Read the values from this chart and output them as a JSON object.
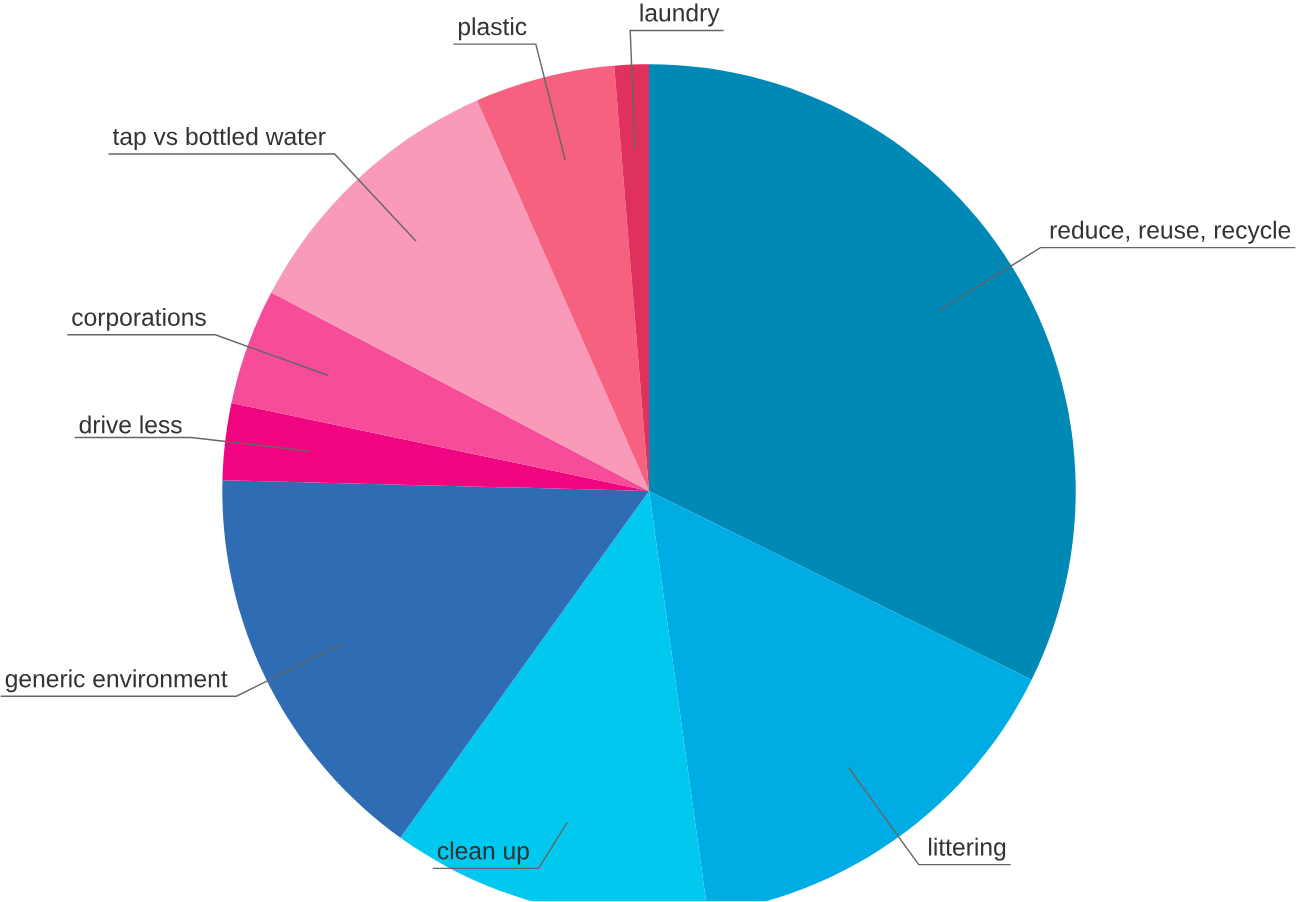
{
  "chart_data": {
    "type": "pie",
    "categories": [
      "reduce, reuse, recycle",
      "littering",
      "clean up",
      "generic environment",
      "drive less",
      "corporations",
      "tap vs bottled water",
      "plastic",
      "laundry"
    ],
    "values": [
      32.3,
      15.5,
      12.1,
      15.5,
      2.9,
      4.4,
      10.7,
      5.3,
      1.3
    ],
    "colors": [
      "#0089b4",
      "#00ace4",
      "#00c8ee",
      "#2e6db4",
      "#f0047f",
      "#f64c9a",
      "#f99ab9",
      "#f6617f",
      "#e0305d"
    ]
  }
}
